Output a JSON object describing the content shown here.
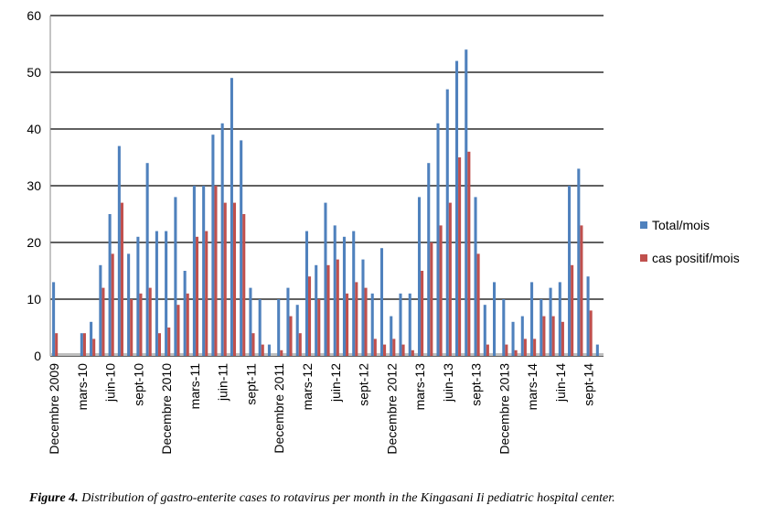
{
  "chart_data": {
    "type": "bar",
    "categories": [
      "Decembre 2009",
      null,
      null,
      "mars-10",
      null,
      null,
      "juin-10",
      null,
      null,
      "sept-10",
      null,
      null,
      "Decembre 2010",
      null,
      null,
      "mars-11",
      null,
      null,
      "juin-11",
      null,
      null,
      "sept-11",
      null,
      null,
      "Decembre 2011",
      null,
      null,
      "mars-12",
      null,
      null,
      "juin-12",
      null,
      null,
      "sept-12",
      null,
      null,
      "Decembre 2012",
      null,
      null,
      "mars-13",
      null,
      null,
      "juin-13",
      null,
      null,
      "sept-13",
      null,
      null,
      "Decembre 2013",
      null,
      null,
      "mars-14",
      null,
      null,
      "juin-14",
      null,
      null,
      "sept-14",
      null
    ],
    "series": [
      {
        "name": "Total/mois",
        "color": "#4f81bd",
        "values": [
          13,
          0,
          0,
          4,
          6,
          16,
          25,
          37,
          18,
          21,
          34,
          22,
          22,
          28,
          15,
          30,
          30,
          39,
          41,
          49,
          38,
          12,
          10,
          2,
          10,
          12,
          9,
          22,
          16,
          27,
          23,
          21,
          22,
          17,
          11,
          19,
          7,
          11,
          11,
          28,
          34,
          41,
          47,
          52,
          54,
          28,
          9,
          13,
          10,
          6,
          7,
          13,
          10,
          12,
          13,
          30,
          33,
          14,
          2
        ]
      },
      {
        "name": "cas positif/mois",
        "color": "#c0504d",
        "values": [
          4,
          0,
          0,
          4,
          3,
          12,
          18,
          27,
          10,
          11,
          12,
          4,
          5,
          9,
          11,
          21,
          22,
          30,
          27,
          27,
          25,
          4,
          2,
          0,
          1,
          7,
          4,
          14,
          10,
          16,
          17,
          11,
          13,
          12,
          3,
          2,
          3,
          2,
          1,
          15,
          20,
          23,
          27,
          35,
          36,
          18,
          2,
          0,
          2,
          1,
          3,
          3,
          7,
          7,
          6,
          16,
          23,
          8,
          0
        ]
      }
    ],
    "ylim": [
      0,
      60
    ],
    "yticks": [
      0,
      10,
      20,
      30,
      40,
      50,
      60
    ],
    "grid": true,
    "legend": "right",
    "caption": {
      "label": "Figure 4.",
      "text": "Distribution of gastro-enterite cases to rotavirus per month in the Kingasani Ii pediatric hospital center."
    }
  }
}
